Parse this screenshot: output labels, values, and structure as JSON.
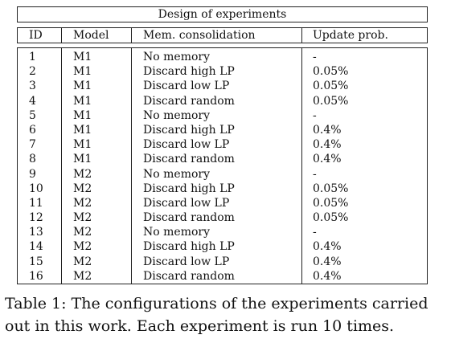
{
  "table": {
    "title": "Design of experiments",
    "headers": {
      "id": "ID",
      "model": "Model",
      "consolidation": "Mem. consolidation",
      "update_prob": "Update prob."
    },
    "rows": [
      {
        "id": "1",
        "model": "M1",
        "consolidation": "No memory",
        "update_prob": "-"
      },
      {
        "id": "2",
        "model": "M1",
        "consolidation": "Discard high LP",
        "update_prob": "0.05%"
      },
      {
        "id": "3",
        "model": "M1",
        "consolidation": "Discard low LP",
        "update_prob": "0.05%"
      },
      {
        "id": "4",
        "model": "M1",
        "consolidation": "Discard random",
        "update_prob": "0.05%"
      },
      {
        "id": "5",
        "model": "M1",
        "consolidation": "No memory",
        "update_prob": "-"
      },
      {
        "id": "6",
        "model": "M1",
        "consolidation": "Discard high LP",
        "update_prob": "0.4%"
      },
      {
        "id": "7",
        "model": "M1",
        "consolidation": "Discard low LP",
        "update_prob": "0.4%"
      },
      {
        "id": "8",
        "model": "M1",
        "consolidation": "Discard random",
        "update_prob": "0.4%"
      },
      {
        "id": "9",
        "model": "M2",
        "consolidation": "No memory",
        "update_prob": "-"
      },
      {
        "id": "10",
        "model": "M2",
        "consolidation": "Discard high LP",
        "update_prob": "0.05%"
      },
      {
        "id": "11",
        "model": "M2",
        "consolidation": "Discard low LP",
        "update_prob": "0.05%"
      },
      {
        "id": "12",
        "model": "M2",
        "consolidation": "Discard random",
        "update_prob": "0.05%"
      },
      {
        "id": "13",
        "model": "M2",
        "consolidation": "No memory",
        "update_prob": "-"
      },
      {
        "id": "14",
        "model": "M2",
        "consolidation": "Discard high LP",
        "update_prob": "0.4%"
      },
      {
        "id": "15",
        "model": "M2",
        "consolidation": "Discard low LP",
        "update_prob": "0.4%"
      },
      {
        "id": "16",
        "model": "M2",
        "consolidation": "Discard random",
        "update_prob": "0.4%"
      }
    ]
  },
  "caption": "Table 1: The configurations of the experiments carried out in this work. Each experiment is run 10 times."
}
